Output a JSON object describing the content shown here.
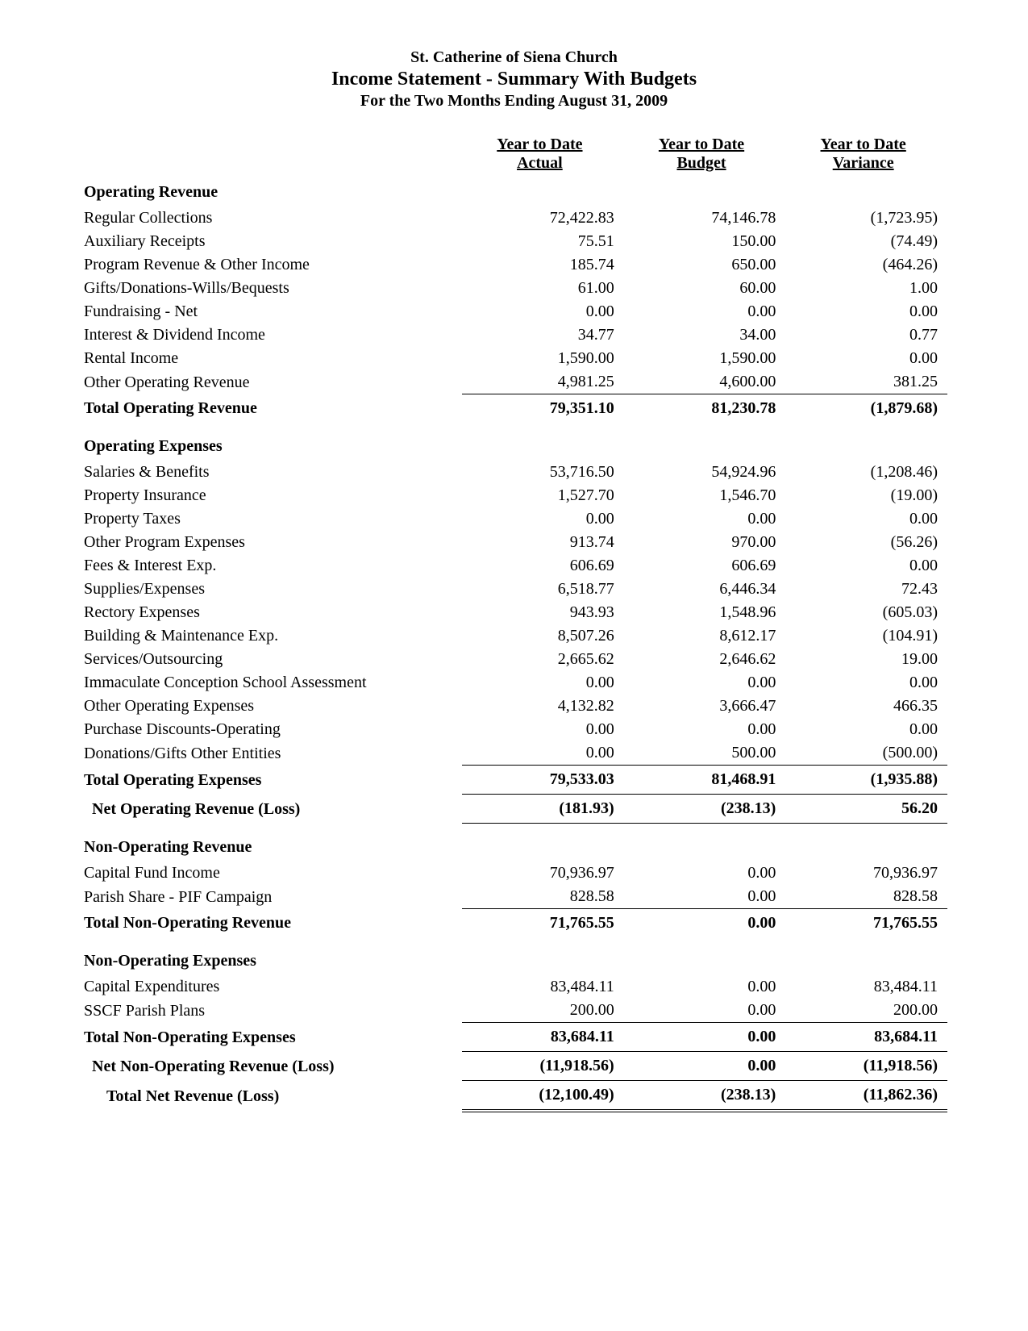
{
  "header": {
    "org": "St. Catherine of Siena Church",
    "title": "Income Statement - Summary With Budgets",
    "period": "For the Two Months Ending August 31, 2009"
  },
  "columns": {
    "c1_line1": "Year to Date",
    "c1_line2": "Actual",
    "c2_line1": "Year to Date",
    "c2_line2": "Budget",
    "c3_line1": "Year to Date",
    "c3_line2": "Variance"
  },
  "sections": {
    "op_rev": {
      "title": "Operating Revenue",
      "rows": [
        {
          "label": "Regular Collections",
          "a": "72,422.83",
          "b": "74,146.78",
          "v": "(1,723.95)"
        },
        {
          "label": "Auxiliary Receipts",
          "a": "75.51",
          "b": "150.00",
          "v": "(74.49)"
        },
        {
          "label": "Program Revenue & Other Income",
          "a": "185.74",
          "b": "650.00",
          "v": "(464.26)"
        },
        {
          "label": "Gifts/Donations-Wills/Bequests",
          "a": "61.00",
          "b": "60.00",
          "v": "1.00"
        },
        {
          "label": "Fundraising - Net",
          "a": "0.00",
          "b": "0.00",
          "v": "0.00"
        },
        {
          "label": "Interest & Dividend Income",
          "a": "34.77",
          "b": "34.00",
          "v": "0.77"
        },
        {
          "label": "Rental Income",
          "a": "1,590.00",
          "b": "1,590.00",
          "v": "0.00"
        },
        {
          "label": "Other Operating Revenue",
          "a": "4,981.25",
          "b": "4,600.00",
          "v": "381.25"
        }
      ],
      "total": {
        "label": "Total Operating Revenue",
        "a": "79,351.10",
        "b": "81,230.78",
        "v": "(1,879.68)"
      }
    },
    "op_exp": {
      "title": "Operating Expenses",
      "rows": [
        {
          "label": "Salaries & Benefits",
          "a": "53,716.50",
          "b": "54,924.96",
          "v": "(1,208.46)"
        },
        {
          "label": "Property Insurance",
          "a": "1,527.70",
          "b": "1,546.70",
          "v": "(19.00)"
        },
        {
          "label": "Property Taxes",
          "a": "0.00",
          "b": "0.00",
          "v": "0.00"
        },
        {
          "label": "Other Program Expenses",
          "a": "913.74",
          "b": "970.00",
          "v": "(56.26)"
        },
        {
          "label": "Fees & Interest Exp.",
          "a": "606.69",
          "b": "606.69",
          "v": "0.00"
        },
        {
          "label": "Supplies/Expenses",
          "a": "6,518.77",
          "b": "6,446.34",
          "v": "72.43"
        },
        {
          "label": "Rectory Expenses",
          "a": "943.93",
          "b": "1,548.96",
          "v": "(605.03)"
        },
        {
          "label": "Building & Maintenance Exp.",
          "a": "8,507.26",
          "b": "8,612.17",
          "v": "(104.91)"
        },
        {
          "label": "Services/Outsourcing",
          "a": "2,665.62",
          "b": "2,646.62",
          "v": "19.00"
        },
        {
          "label": "Immaculate Conception School Assessment",
          "a": "0.00",
          "b": "0.00",
          "v": "0.00"
        },
        {
          "label": "Other Operating Expenses",
          "a": "4,132.82",
          "b": "3,666.47",
          "v": "466.35"
        },
        {
          "label": "Purchase Discounts-Operating",
          "a": "0.00",
          "b": "0.00",
          "v": "0.00"
        },
        {
          "label": "Donations/Gifts Other Entities",
          "a": "0.00",
          "b": "500.00",
          "v": "(500.00)"
        }
      ],
      "total": {
        "label": "Total Operating Expenses",
        "a": "79,533.03",
        "b": "81,468.91",
        "v": "(1,935.88)"
      },
      "net": {
        "label": "Net Operating Revenue (Loss)",
        "a": "(181.93)",
        "b": "(238.13)",
        "v": "56.20"
      }
    },
    "nonop_rev": {
      "title": "Non-Operating Revenue",
      "rows": [
        {
          "label": "Capital Fund Income",
          "a": "70,936.97",
          "b": "0.00",
          "v": "70,936.97"
        },
        {
          "label": "Parish Share - PIF Campaign",
          "a": "828.58",
          "b": "0.00",
          "v": "828.58"
        }
      ],
      "total": {
        "label": "Total Non-Operating Revenue",
        "a": "71,765.55",
        "b": "0.00",
        "v": "71,765.55"
      }
    },
    "nonop_exp": {
      "title": "Non-Operating Expenses",
      "rows": [
        {
          "label": "Capital Expenditures",
          "a": "83,484.11",
          "b": "0.00",
          "v": "83,484.11"
        },
        {
          "label": "SSCF Parish Plans",
          "a": "200.00",
          "b": "0.00",
          "v": "200.00"
        }
      ],
      "total": {
        "label": "Total Non-Operating Expenses",
        "a": "83,684.11",
        "b": "0.00",
        "v": "83,684.11"
      },
      "net": {
        "label": "Net Non-Operating Revenue (Loss)",
        "a": "(11,918.56)",
        "b": "0.00",
        "v": "(11,918.56)"
      }
    },
    "grand": {
      "label": "Total Net Revenue (Loss)",
      "a": "(12,100.49)",
      "b": "(238.13)",
      "v": "(11,862.36)"
    }
  }
}
